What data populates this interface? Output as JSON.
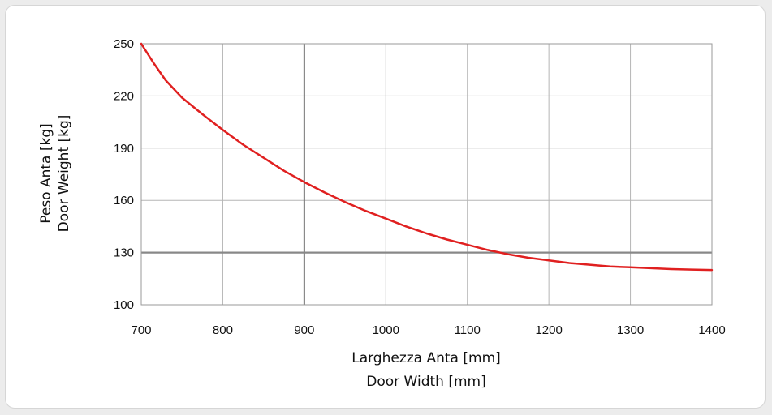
{
  "chart_data": {
    "type": "line",
    "xlabel_lines": [
      "Larghezza Anta [mm]",
      "Door Width [mm]"
    ],
    "ylabel_lines": [
      "Peso Anta [kg]",
      "Door Weight [kg]"
    ],
    "xlim": [
      700,
      1400
    ],
    "ylim": [
      100,
      250
    ],
    "x_ticks": [
      "700",
      "800",
      "900",
      "1000",
      "1100",
      "1200",
      "1300",
      "1400"
    ],
    "y_ticks": [
      "250",
      "220",
      "190",
      "160",
      "130",
      "100"
    ],
    "grid": true,
    "highlight_lines": [
      {
        "axis": "x",
        "value": 900
      },
      {
        "axis": "y",
        "value": 130
      }
    ],
    "series": [
      {
        "color": "#e02020",
        "x": [
          700,
          715,
          730,
          750,
          775,
          800,
          825,
          850,
          875,
          900,
          925,
          950,
          975,
          1000,
          1025,
          1050,
          1075,
          1100,
          1125,
          1150,
          1175,
          1200,
          1225,
          1250,
          1275,
          1300,
          1325,
          1350,
          1375,
          1400
        ],
        "y": [
          250,
          239,
          229,
          219,
          209.5,
          200.5,
          192,
          184.5,
          177,
          170.5,
          164.5,
          159,
          154,
          149.5,
          145,
          141,
          137.5,
          134.5,
          131.5,
          129,
          127,
          125.5,
          124,
          123,
          122,
          121.5,
          121,
          120.5,
          120.2,
          120
        ]
      }
    ]
  }
}
